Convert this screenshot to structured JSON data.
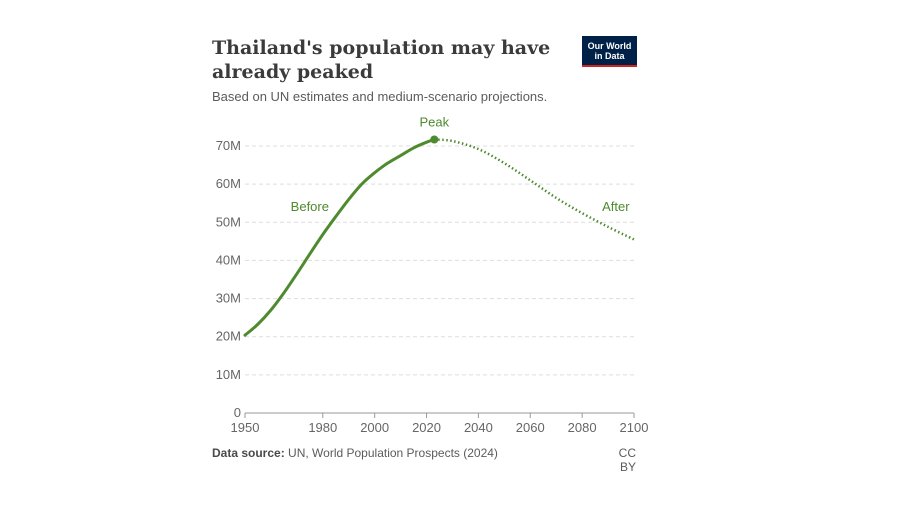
{
  "header": {
    "title": "Thailand's population may have already peaked",
    "subtitle": "Based on UN estimates and medium-scenario projections."
  },
  "logo": {
    "line1": "Our World",
    "line2": "in Data"
  },
  "footer": {
    "source_label": "Data source:",
    "source_text": "UN, World Population Prospects (2024)",
    "license": "CC BY"
  },
  "colors": {
    "series": "#4e8a2e",
    "grid": "#dddddd",
    "axis": "#999999",
    "logo_bg": "#002147",
    "logo_accent": "#ce261e"
  },
  "chart_data": {
    "type": "line",
    "title": "Thailand's population may have already peaked",
    "xlabel": "",
    "ylabel": "",
    "xlim": [
      1950,
      2100
    ],
    "ylim": [
      0,
      70000000
    ],
    "x_ticks": [
      1950,
      1980,
      2000,
      2020,
      2040,
      2060,
      2080,
      2100
    ],
    "y_ticks": [
      {
        "value": 0,
        "label": "0"
      },
      {
        "value": 10000000,
        "label": "10M"
      },
      {
        "value": 20000000,
        "label": "20M"
      },
      {
        "value": 30000000,
        "label": "30M"
      },
      {
        "value": 40000000,
        "label": "40M"
      },
      {
        "value": 50000000,
        "label": "50M"
      },
      {
        "value": 60000000,
        "label": "60M"
      },
      {
        "value": 70000000,
        "label": "70M"
      }
    ],
    "grid": "horizontal dashed",
    "series": [
      {
        "style": "solid",
        "points": [
          [
            1950,
            20400000
          ],
          [
            1955,
            23300000
          ],
          [
            1960,
            27000000
          ],
          [
            1965,
            31500000
          ],
          [
            1970,
            36500000
          ],
          [
            1975,
            41700000
          ],
          [
            1980,
            46800000
          ],
          [
            1985,
            51500000
          ],
          [
            1990,
            56000000
          ],
          [
            1995,
            60000000
          ],
          [
            2000,
            63000000
          ],
          [
            2005,
            65500000
          ],
          [
            2010,
            67500000
          ],
          [
            2015,
            69500000
          ],
          [
            2020,
            71000000
          ],
          [
            2023,
            71700000
          ]
        ]
      },
      {
        "style": "dotted",
        "points": [
          [
            2023,
            71700000
          ],
          [
            2030,
            71300000
          ],
          [
            2040,
            69200000
          ],
          [
            2050,
            65500000
          ],
          [
            2060,
            61000000
          ],
          [
            2070,
            56400000
          ],
          [
            2080,
            52400000
          ],
          [
            2090,
            48800000
          ],
          [
            2100,
            45500000
          ]
        ]
      }
    ],
    "annotations": [
      {
        "text": "Peak",
        "x": 2023,
        "y": 71700000,
        "marker": true
      },
      {
        "text": "Before",
        "x": 1975,
        "y": 54000000
      },
      {
        "text": "After",
        "x": 2093,
        "y": 54000000
      }
    ]
  }
}
